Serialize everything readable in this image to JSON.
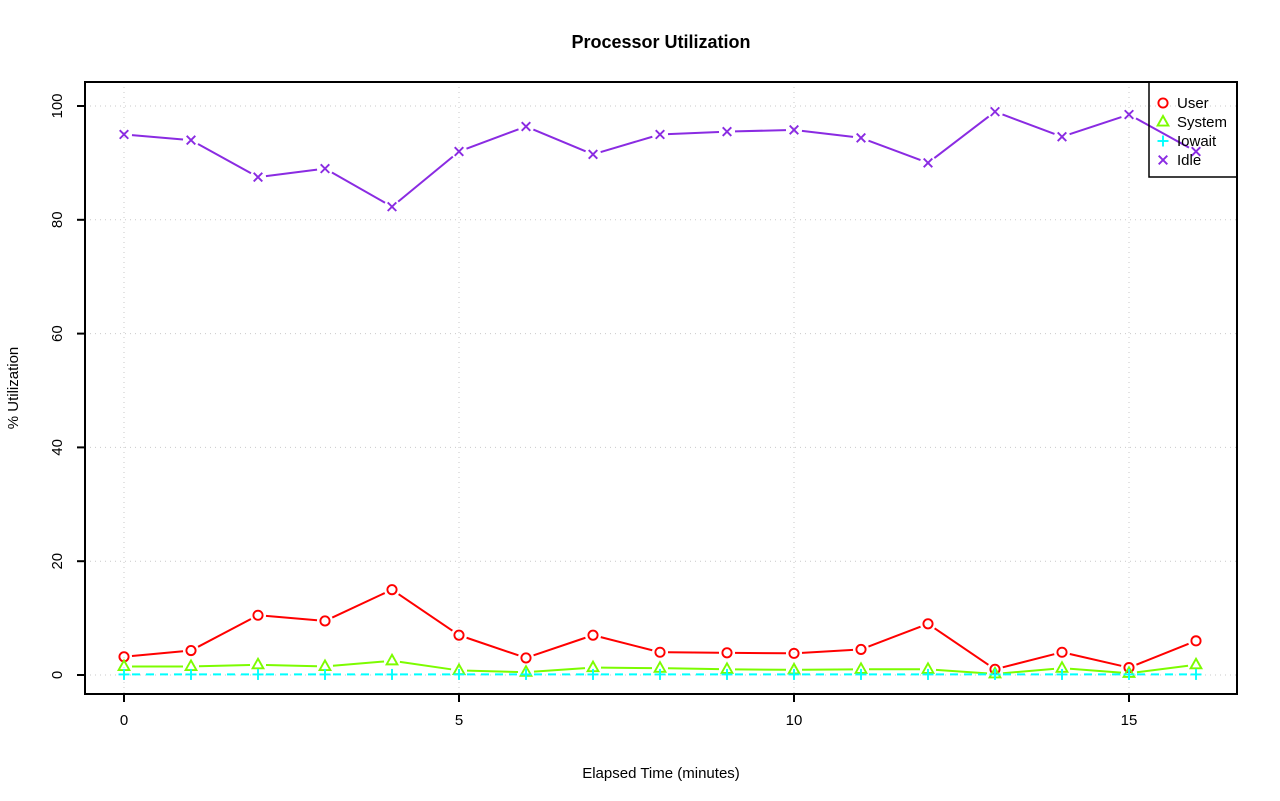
{
  "chart_data": {
    "type": "line",
    "title": "Processor Utilization",
    "xlabel": "Elapsed Time (minutes)",
    "ylabel": "% Utilization",
    "x": [
      0,
      1,
      2,
      3,
      4,
      5,
      6,
      7,
      8,
      9,
      10,
      11,
      12,
      13,
      14,
      15,
      16
    ],
    "x_ticks": [
      0,
      5,
      10,
      15
    ],
    "y_ticks": [
      0,
      20,
      40,
      60,
      80,
      100
    ],
    "xlim": [
      -0.6,
      16.6
    ],
    "ylim": [
      -3.3,
      104.2
    ],
    "grid": true,
    "grid_style": "dotted",
    "legend": {
      "position": "top-right",
      "labels": [
        "User",
        "System",
        "Iowait",
        "Idle"
      ]
    },
    "series": [
      {
        "name": "User",
        "color": "#ff0000",
        "marker": "circle",
        "linestyle": "solid",
        "values": [
          3.2,
          4.3,
          10.5,
          9.5,
          15,
          7,
          3,
          7,
          4,
          3.9,
          3.8,
          4.5,
          9,
          1,
          4,
          1.3,
          6
        ]
      },
      {
        "name": "System",
        "color": "#7cfc00",
        "marker": "triangle",
        "linestyle": "solid",
        "values": [
          1.5,
          1.5,
          1.8,
          1.5,
          2.5,
          0.8,
          0.5,
          1.3,
          1.2,
          1,
          0.9,
          1,
          1,
          0.2,
          1.2,
          0.3,
          1.8
        ]
      },
      {
        "name": "Iowait",
        "color": "#00ffff",
        "marker": "plus",
        "linestyle": "dashed",
        "values": [
          0.1,
          0.1,
          0.1,
          0.1,
          0.1,
          0.1,
          0.1,
          0.1,
          0.1,
          0.1,
          0.1,
          0.1,
          0.1,
          0.1,
          0.1,
          0.1,
          0.1
        ]
      },
      {
        "name": "Idle",
        "color": "#8a2be2",
        "marker": "x",
        "linestyle": "solid",
        "values": [
          95,
          94,
          87.5,
          89,
          82.3,
          92,
          96.4,
          91.5,
          95,
          95.5,
          95.8,
          94.4,
          90,
          99,
          94.6,
          98.5,
          92
        ]
      }
    ]
  },
  "colors": {
    "background": "#ffffff",
    "axis": "#000000",
    "grid": "#c9c9c9"
  }
}
